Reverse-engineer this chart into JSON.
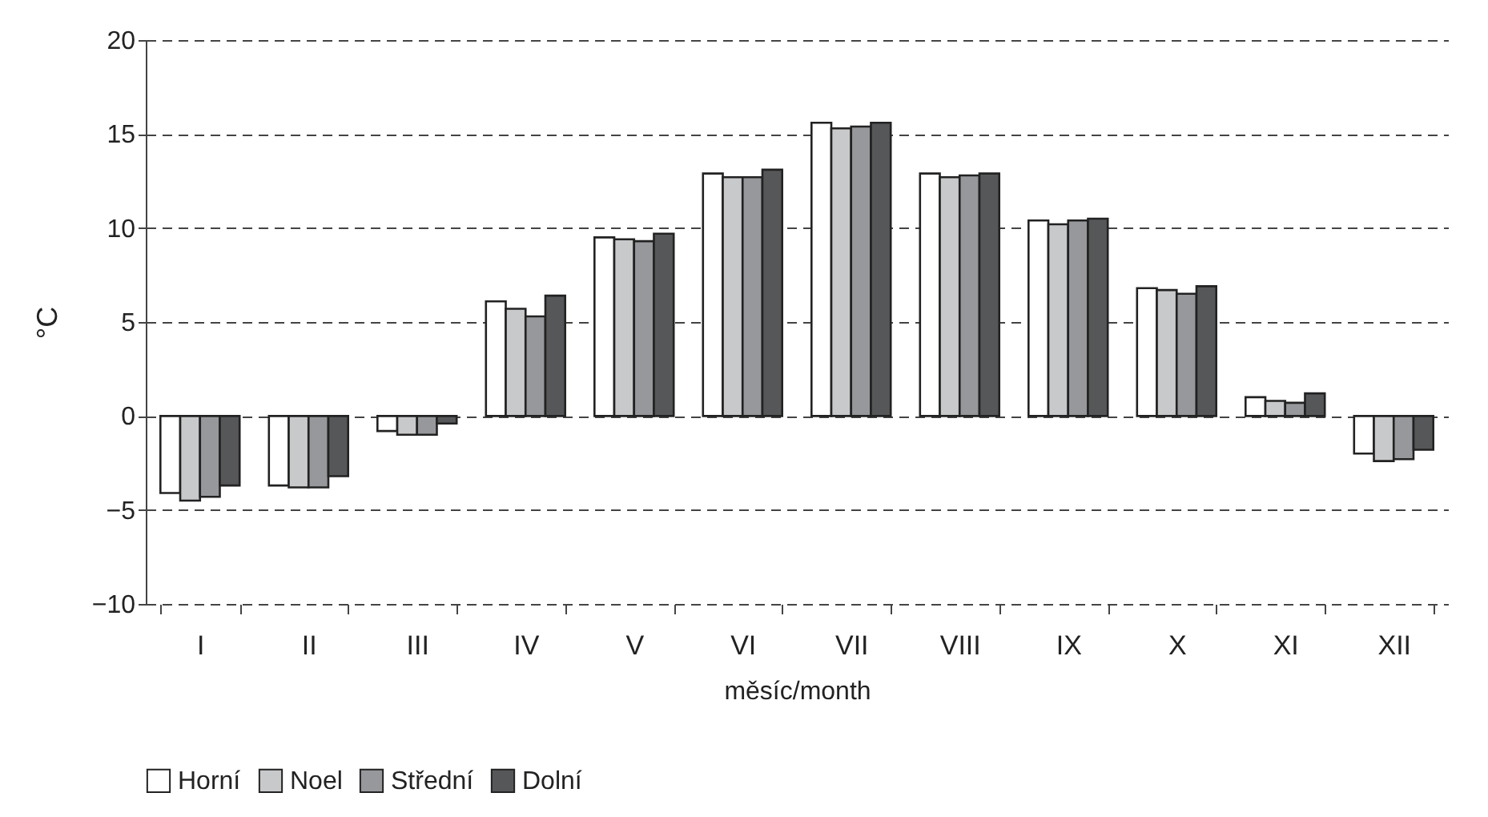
{
  "chart_data": {
    "type": "bar",
    "xlabel": "měsíc/month",
    "ylabel": "°C",
    "categories": [
      "I",
      "II",
      "III",
      "IV",
      "V",
      "VI",
      "VII",
      "VIII",
      "IX",
      "X",
      "XI",
      "XII"
    ],
    "series": [
      {
        "name": "Horní",
        "color": "#ffffff",
        "values": [
          -4.1,
          -3.7,
          -0.8,
          6.1,
          9.5,
          12.9,
          15.6,
          12.9,
          10.4,
          6.8,
          1.0,
          -2.0
        ]
      },
      {
        "name": "Noel",
        "color": "#c8c9cb",
        "values": [
          -4.5,
          -3.8,
          -1.0,
          5.7,
          9.4,
          12.7,
          15.3,
          12.7,
          10.2,
          6.7,
          0.8,
          -2.4
        ]
      },
      {
        "name": "Střední",
        "color": "#97989b",
        "values": [
          -4.3,
          -3.8,
          -1.0,
          5.3,
          9.3,
          12.7,
          15.4,
          12.8,
          10.4,
          6.5,
          0.7,
          -2.3
        ]
      },
      {
        "name": "Dolní",
        "color": "#555759",
        "values": [
          -3.7,
          -3.2,
          -0.4,
          6.4,
          9.7,
          13.1,
          15.6,
          12.9,
          10.5,
          6.9,
          1.2,
          -1.8
        ]
      }
    ],
    "ylim": [
      -10,
      20
    ],
    "yticks": [
      -10,
      -5,
      0,
      5,
      10,
      15,
      20
    ],
    "grid": "y",
    "legend": "bottom"
  }
}
